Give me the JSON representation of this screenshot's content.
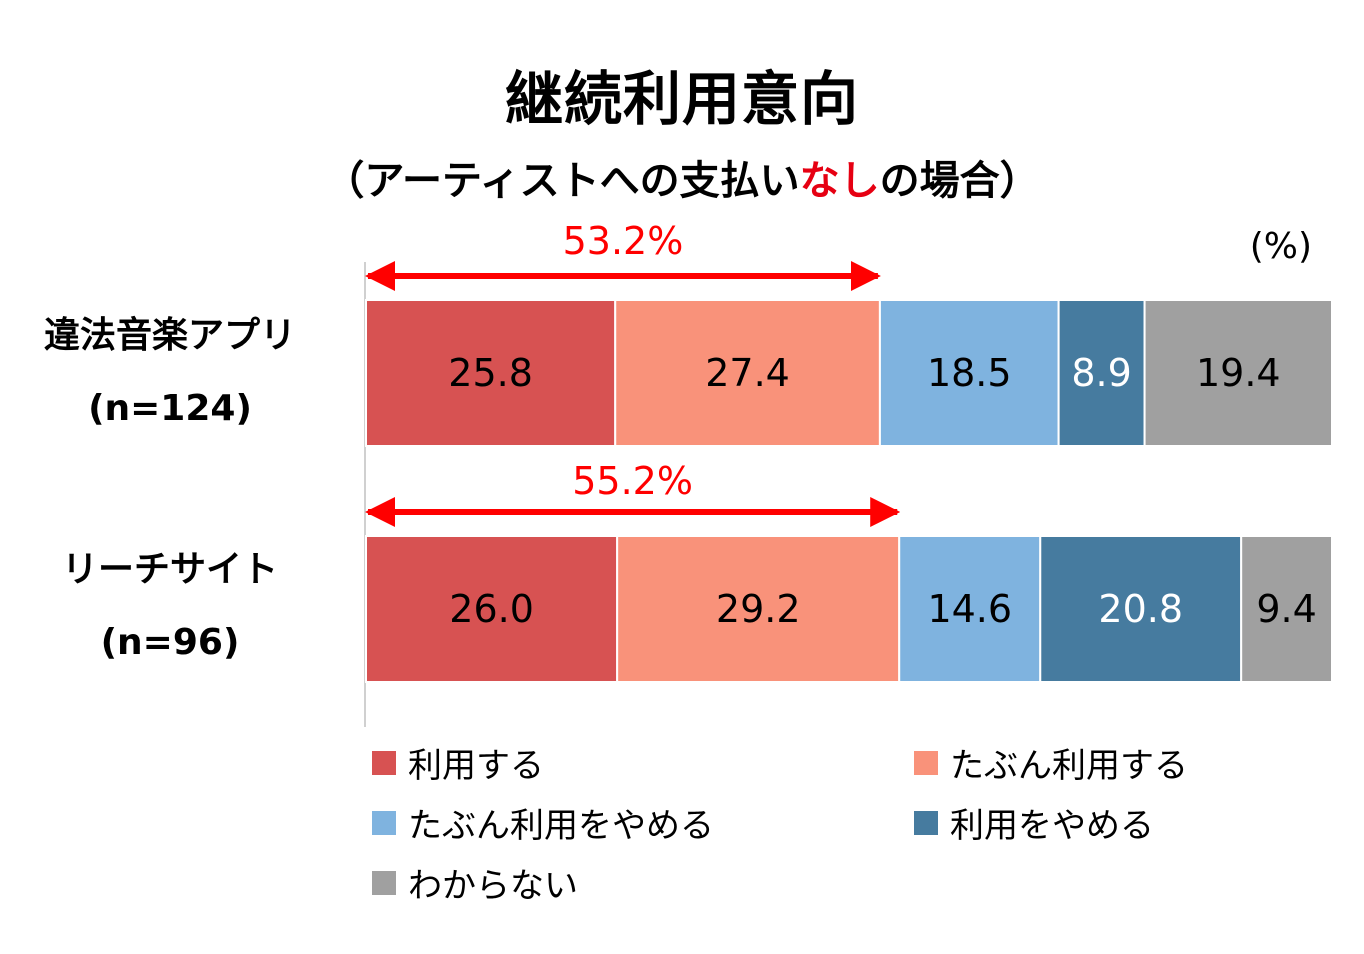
{
  "title": "継続利用意向",
  "subtitle": {
    "prefix": "（アーティストへの支払い",
    "highlight": "なし",
    "suffix": "の場合）"
  },
  "unit_label": "(%)",
  "rows": [
    {
      "name": "違法音楽アプリ",
      "n": "(n=124)"
    },
    {
      "name": "リーチサイト",
      "n": "(n=96)"
    }
  ],
  "chart_data": {
    "type": "bar",
    "orientation": "horizontal",
    "stacked": true,
    "title": "継続利用意向",
    "categories": [
      "違法音楽アプリ (n=124)",
      "リーチサイト (n=96)"
    ],
    "xlim": [
      0,
      100
    ],
    "grid": false,
    "legend_position": "bottom",
    "series": [
      {
        "name": "利用する",
        "values": [
          25.8,
          26.0
        ],
        "labels": [
          "25.8",
          "26.0"
        ],
        "color": "#d75252",
        "label_color": "#000000"
      },
      {
        "name": "たぶん利用する",
        "values": [
          27.4,
          29.2
        ],
        "labels": [
          "27.4",
          "29.2"
        ],
        "color": "#f9927a",
        "label_color": "#000000"
      },
      {
        "name": "たぶん利用をやめる",
        "values": [
          18.5,
          14.6
        ],
        "labels": [
          "18.5",
          "14.6"
        ],
        "color": "#7fb3df",
        "label_color": "#000000"
      },
      {
        "name": "利用をやめる",
        "values": [
          8.9,
          20.8
        ],
        "labels": [
          "8.9",
          "20.8"
        ],
        "color": "#467b9f",
        "label_color": "#ffffff"
      },
      {
        "name": "わからない",
        "values": [
          19.4,
          9.4
        ],
        "labels": [
          "19.4",
          "9.4"
        ],
        "color": "#a0a0a0",
        "label_color": "#000000"
      }
    ],
    "annotations": [
      {
        "category": 0,
        "text": "53.2%",
        "value": 53.2,
        "color": "#ff0000"
      },
      {
        "category": 1,
        "text": "55.2%",
        "value": 55.2,
        "color": "#ff0000"
      }
    ]
  }
}
